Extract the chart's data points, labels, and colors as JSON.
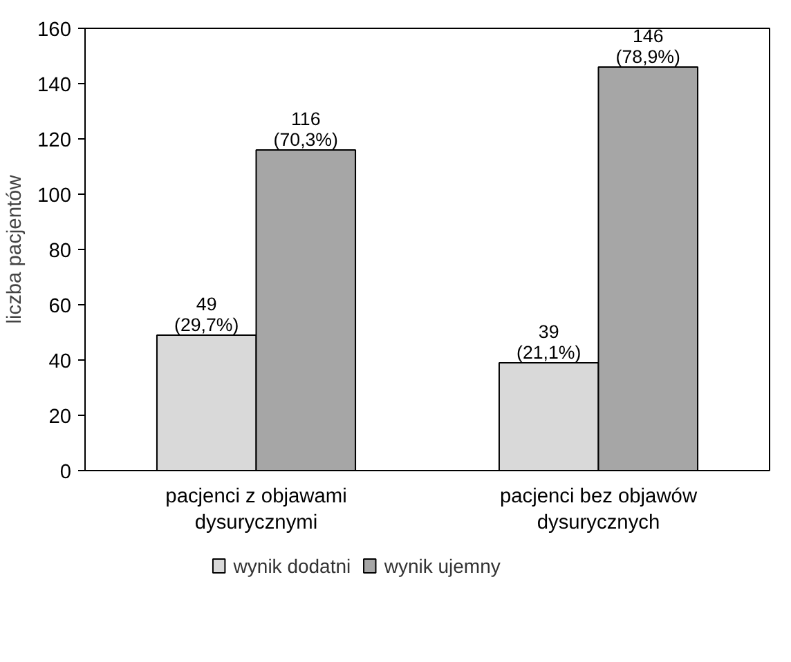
{
  "chart_data": {
    "type": "bar",
    "ylabel": "liczba pacjentów",
    "categories": [
      "pacjenci z objawami\ndysurycznymi",
      "pacjenci bez objawów\ndysurycznych"
    ],
    "series": [
      {
        "name": "wynik dodatni",
        "color": "#d9d9d9",
        "values": [
          49,
          39
        ],
        "value_labels": [
          "49\n(29,7%)",
          "39\n(21,1%)"
        ]
      },
      {
        "name": "wynik ujemny",
        "color": "#a6a6a6",
        "values": [
          116,
          146
        ],
        "value_labels": [
          "116\n(70,3%)",
          "146\n(78,9%)"
        ]
      }
    ],
    "ylim": [
      0,
      160
    ],
    "yticks": [
      0,
      20,
      40,
      60,
      80,
      100,
      120,
      140,
      160
    ],
    "grid": false,
    "legend": "bottom"
  }
}
